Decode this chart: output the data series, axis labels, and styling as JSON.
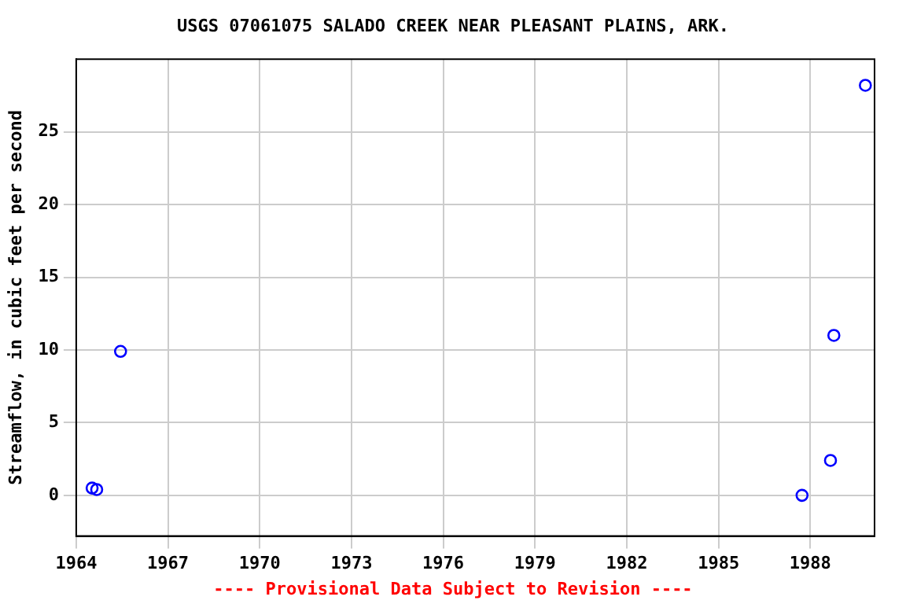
{
  "chart_data": {
    "type": "scatter",
    "title": "USGS 07061075 SALADO CREEK NEAR PLEASANT PLAINS, ARK.",
    "ylabel": "Streamflow, in cubic feet per second",
    "annotations": [
      "---- Provisional Data Subject to Revision ----"
    ],
    "x": [
      1964.52,
      1964.67,
      1965.45,
      1987.73,
      1988.66,
      1988.77,
      1989.8
    ],
    "series": [
      {
        "color": "#0000ff",
        "values": [
          0.5,
          0.4,
          9.9,
          0.0,
          2.4,
          11.0,
          28.2
        ]
      }
    ],
    "xlim": [
      1964,
      1990.1
    ],
    "xticks": [
      1964,
      1967,
      1970,
      1973,
      1976,
      1979,
      1982,
      1985,
      1988
    ],
    "ylim": [
      -2.8,
      30
    ],
    "yticks": [
      0,
      5,
      10,
      15,
      20,
      25
    ],
    "grid": true,
    "legend": false,
    "marker": "circle"
  }
}
